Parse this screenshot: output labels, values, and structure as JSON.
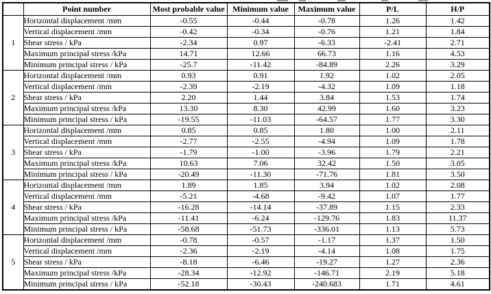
{
  "table": {
    "columns": [
      "",
      "Point number",
      "Most probable value",
      "Minimum value",
      "Maximum value",
      "P/L",
      "H/P"
    ],
    "groups": [
      {
        "point": "1",
        "rows": [
          {
            "label": "Horizontal displacement /mm",
            "values": [
              "-0.55",
              "-0.44",
              "-0.78",
              "1.26",
              "1.42"
            ]
          },
          {
            "label": "Vertical displacement /mm",
            "values": [
              "-0.42",
              "-0.34",
              "-0.76",
              "1.21",
              "1.84"
            ]
          },
          {
            "label": "Shear stress / kPa",
            "values": [
              "-2.34",
              "0.97",
              "-6.33",
              "-2.41",
              "2.71"
            ]
          },
          {
            "label": "Maximum principal stress /kPa",
            "values": [
              "14.71",
              "12.66",
              "66.73",
              "1.16",
              "4.53"
            ]
          },
          {
            "label": "Minimum principal stress / kPa",
            "values": [
              "-25.7",
              "-11.42",
              "-84.89",
              "2.26",
              "3.29"
            ]
          }
        ]
      },
      {
        "point": "2",
        "rows": [
          {
            "label": "Horizontal displacement /mm",
            "values": [
              "0.93",
              "0.91",
              "1.92",
              "1.02",
              "2.05"
            ]
          },
          {
            "label": "Vertical displacement /mm",
            "values": [
              "-2.39",
              "-2.19",
              "-4.32",
              "1.09",
              "1.18"
            ]
          },
          {
            "label": "Shear stress / kPa",
            "values": [
              "2.20",
              "1.44",
              "3.84",
              "1.53",
              "1.74"
            ]
          },
          {
            "label": "Maximum principal stress /kPa",
            "values": [
              "13.30",
              "8.30",
              "42.99",
              "1.60",
              "3.23"
            ]
          },
          {
            "label": "Minimum principal stress / kPa",
            "values": [
              "-19.55",
              "-11.03",
              "-64.57",
              "1.77",
              "3.30"
            ]
          }
        ]
      },
      {
        "point": "3",
        "rows": [
          {
            "label": "Horizontal displacement /mm",
            "values": [
              "0.85",
              "0.85",
              "1.80",
              "1.00",
              "2.11"
            ]
          },
          {
            "label": "Vertical displacement /mm",
            "values": [
              "-2.77",
              "-2.55",
              "-4.94",
              "1.09",
              "1.78"
            ]
          },
          {
            "label": "Shear stress / kPa",
            "values": [
              "-1.79",
              "-1.00",
              "-3.96",
              "1.79",
              "2.21"
            ]
          },
          {
            "label": "Maximum principal stress /kPa",
            "values": [
              "10.63",
              "7.06",
              "32.42",
              "1.50",
              "3.05"
            ]
          },
          {
            "label": "Minimum principal stress / kPa",
            "values": [
              "-20.49",
              "-11.30",
              "-71.76",
              "1.81",
              "3.50"
            ]
          }
        ]
      },
      {
        "point": "4",
        "rows": [
          {
            "label": "Horizontal displacement /mm",
            "values": [
              "1.89",
              "1.85",
              "3.94",
              "1.02",
              "2.08"
            ]
          },
          {
            "label": "Vertical displacement /mm",
            "values": [
              "-5.21",
              "-4.68",
              "-9.42",
              "1.07",
              "1.77"
            ]
          },
          {
            "label": "Shear stress / kPa",
            "values": [
              "-16.28",
              "-14.14",
              "-37.89",
              "1.15",
              "2.33"
            ]
          },
          {
            "label": "Maximum principal stress /kPa",
            "values": [
              "-11.41",
              "-6.24",
              "-129.76",
              "1.83",
              "11.37"
            ]
          },
          {
            "label": "Minimum principal stress / kPa",
            "values": [
              "-58.68",
              "-51.73",
              "-336.01",
              "1.13",
              "5.73"
            ]
          }
        ]
      },
      {
        "point": "5",
        "rows": [
          {
            "label": "Horizontal displacement /mm",
            "values": [
              "-0.78",
              "-0.57",
              "-1.17",
              "1.37",
              "1.50"
            ]
          },
          {
            "label": "Vertical displacement /mm",
            "values": [
              "-2.36",
              "-2.19",
              "-4.14",
              "1.08",
              "1.75"
            ]
          },
          {
            "label": "Shear stress / kPa",
            "values": [
              "-8.18",
              "-6.46",
              "-19.27",
              "1.27",
              "2.36"
            ]
          },
          {
            "label": "Maximum principal stress /kPa",
            "values": [
              "-28.34",
              "-12.92",
              "-146.71",
              "2.19",
              "5.18"
            ]
          },
          {
            "label": "Minimum principal stress / kPa",
            "values": [
              "-52.18",
              "-30.43",
              "-240.683",
              "1.71",
              "4.61"
            ]
          }
        ]
      }
    ]
  },
  "chart_data": {
    "type": "table",
    "columns": [
      "Point number",
      "Most probable value",
      "Minimum value",
      "Maximum value",
      "P/L",
      "H/P"
    ],
    "row_labels_per_point": [
      "Horizontal displacement /mm",
      "Vertical displacement /mm",
      "Shear stress / kPa",
      "Maximum principal stress /kPa",
      "Minimum principal stress / kPa"
    ],
    "points": [
      1,
      2,
      3,
      4,
      5
    ]
  }
}
